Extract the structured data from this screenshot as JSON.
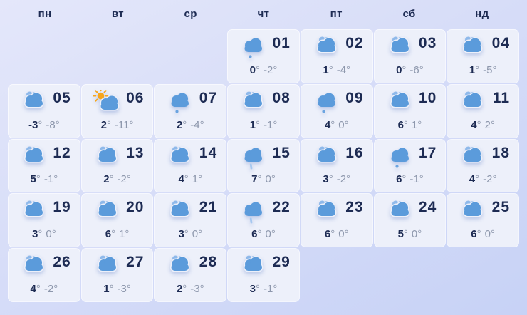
{
  "weekday_row": [
    "пн",
    "вт",
    "ср",
    "чт",
    "пт",
    "сб",
    "нд"
  ],
  "degree_symbol": "°",
  "colors": {
    "background_top": "#e4e7fa",
    "background_bottom": "#c7d2f6",
    "cell_background": "#edf0fa",
    "text_navy": "#1d2b53",
    "text_gray": "#8d97ac",
    "cloud_blue": "#5b9bdb",
    "back_cloud_blue": "#8fb9ea",
    "sun_orange": "#f7a61c",
    "snow_dot_blue": "#6ba4e0",
    "rain_streak_blue": "#a6c8f0"
  },
  "icon_legend": {
    "clouds": "clouds-icon",
    "sun-cloud": "sun-cloud-icon",
    "cloud-snow": "cloud-snow-icon",
    "cloud-rain": "cloud-rain-icon"
  },
  "days": [
    {
      "day": "01",
      "high": "0",
      "low": "-2",
      "icon": "cloud-snow",
      "col": 4,
      "row": 1
    },
    {
      "day": "02",
      "high": "1",
      "low": "-4",
      "icon": "clouds",
      "col": 5,
      "row": 1
    },
    {
      "day": "03",
      "high": "0",
      "low": "-6",
      "icon": "clouds",
      "col": 6,
      "row": 1
    },
    {
      "day": "04",
      "high": "1",
      "low": "-5",
      "icon": "clouds",
      "col": 7,
      "row": 1
    },
    {
      "day": "05",
      "high": "-3",
      "low": "-8",
      "icon": "clouds",
      "col": 1,
      "row": 2
    },
    {
      "day": "06",
      "high": "2",
      "low": "-11",
      "icon": "sun-cloud",
      "col": 2,
      "row": 2
    },
    {
      "day": "07",
      "high": "2",
      "low": "-4",
      "icon": "cloud-snow",
      "col": 3,
      "row": 2
    },
    {
      "day": "08",
      "high": "1",
      "low": "-1",
      "icon": "clouds",
      "col": 4,
      "row": 2
    },
    {
      "day": "09",
      "high": "4",
      "low": "0",
      "icon": "cloud-snow",
      "col": 5,
      "row": 2
    },
    {
      "day": "10",
      "high": "6",
      "low": "1",
      "icon": "clouds",
      "col": 6,
      "row": 2
    },
    {
      "day": "11",
      "high": "4",
      "low": "2",
      "icon": "clouds",
      "col": 7,
      "row": 2
    },
    {
      "day": "12",
      "high": "5",
      "low": "-1",
      "icon": "clouds",
      "col": 1,
      "row": 3
    },
    {
      "day": "13",
      "high": "2",
      "low": "-2",
      "icon": "clouds",
      "col": 2,
      "row": 3
    },
    {
      "day": "14",
      "high": "4",
      "low": "1",
      "icon": "clouds",
      "col": 3,
      "row": 3
    },
    {
      "day": "15",
      "high": "7",
      "low": "0",
      "icon": "cloud-rain",
      "col": 4,
      "row": 3
    },
    {
      "day": "16",
      "high": "3",
      "low": "-2",
      "icon": "clouds",
      "col": 5,
      "row": 3
    },
    {
      "day": "17",
      "high": "6",
      "low": "-1",
      "icon": "cloud-snow",
      "col": 6,
      "row": 3
    },
    {
      "day": "18",
      "high": "4",
      "low": "-2",
      "icon": "clouds",
      "col": 7,
      "row": 3
    },
    {
      "day": "19",
      "high": "3",
      "low": "0",
      "icon": "clouds",
      "col": 1,
      "row": 4
    },
    {
      "day": "20",
      "high": "6",
      "low": "1",
      "icon": "clouds",
      "col": 2,
      "row": 4
    },
    {
      "day": "21",
      "high": "3",
      "low": "0",
      "icon": "clouds",
      "col": 3,
      "row": 4
    },
    {
      "day": "22",
      "high": "6",
      "low": "0",
      "icon": "cloud-rain",
      "col": 4,
      "row": 4
    },
    {
      "day": "23",
      "high": "6",
      "low": "0",
      "icon": "clouds",
      "col": 5,
      "row": 4
    },
    {
      "day": "24",
      "high": "5",
      "low": "0",
      "icon": "clouds",
      "col": 6,
      "row": 4
    },
    {
      "day": "25",
      "high": "6",
      "low": "0",
      "icon": "clouds",
      "col": 7,
      "row": 4
    },
    {
      "day": "26",
      "high": "4",
      "low": "-2",
      "icon": "clouds",
      "col": 1,
      "row": 5
    },
    {
      "day": "27",
      "high": "1",
      "low": "-3",
      "icon": "clouds",
      "col": 2,
      "row": 5
    },
    {
      "day": "28",
      "high": "2",
      "low": "-3",
      "icon": "clouds",
      "col": 3,
      "row": 5
    },
    {
      "day": "29",
      "high": "3",
      "low": "-1",
      "icon": "clouds",
      "col": 4,
      "row": 5
    }
  ]
}
